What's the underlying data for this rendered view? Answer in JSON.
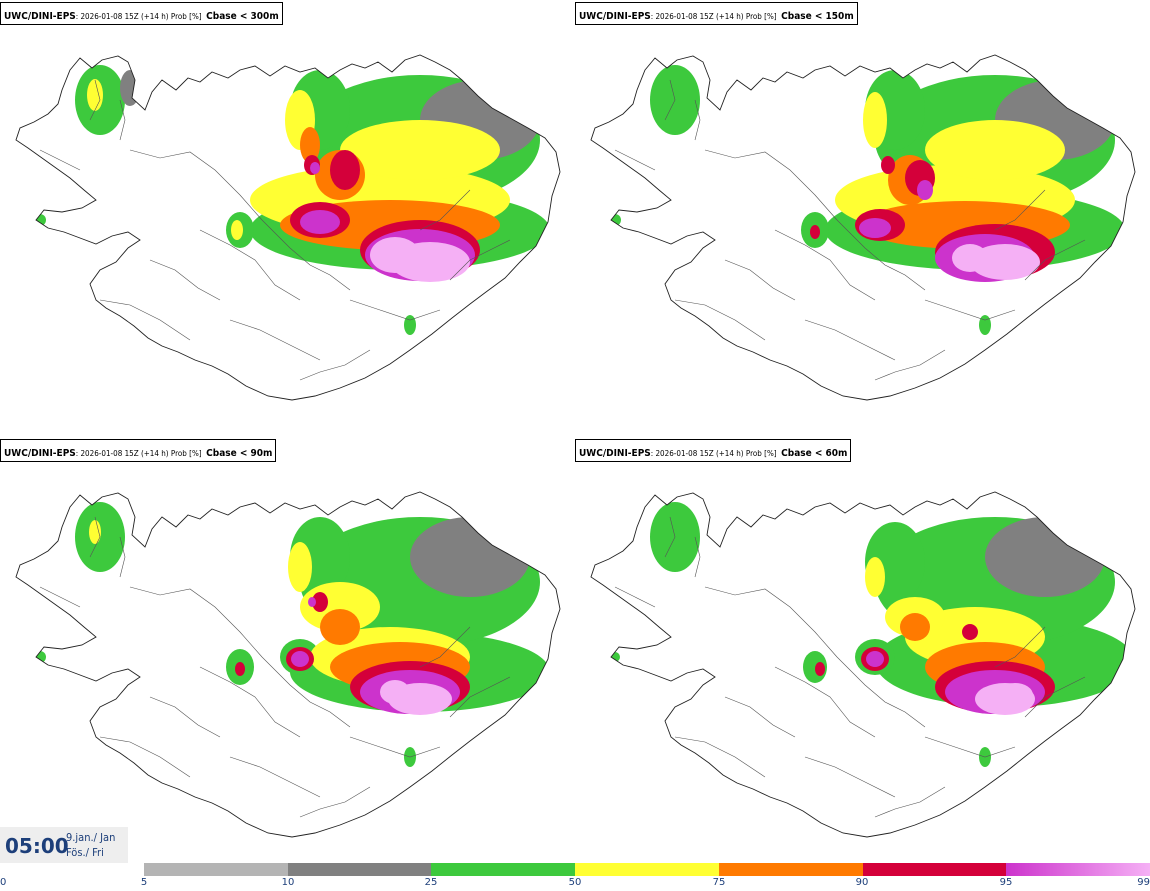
{
  "panels": [
    {
      "model": "UWC/DINI-EPS",
      "meta": ": 2026-01-08 15Z (+14 h) Prob [%]",
      "var": "Cbase < 300m"
    },
    {
      "model": "UWC/DINI-EPS",
      "meta": ": 2026-01-08 15Z (+14 h) Prob [%]",
      "var": "Cbase < 150m"
    },
    {
      "model": "UWC/DINI-EPS",
      "meta": ": 2026-01-08 15Z (+14 h) Prob [%]",
      "var": "Cbase < 90m"
    },
    {
      "model": "UWC/DINI-EPS",
      "meta": ": 2026-01-08 15Z (+14 h) Prob [%]",
      "var": "Cbase < 60m"
    }
  ],
  "valid_time": {
    "clock": "05:00",
    "date_line1": "9.jan./ Jan",
    "date_line2": "Fös./ Fri"
  },
  "legend": {
    "ticks": [
      "0",
      "5",
      "10",
      "25",
      "50",
      "75",
      "90",
      "95",
      "99"
    ],
    "segments": [
      {
        "from": 5,
        "to": 10,
        "color": "#b4b4b4"
      },
      {
        "from": 10,
        "to": 25,
        "color": "#808080"
      },
      {
        "from": 25,
        "to": 50,
        "color": "#3dc93d"
      },
      {
        "from": 50,
        "to": 75,
        "color": "#ffff33"
      },
      {
        "from": 75,
        "to": 90,
        "color": "#ff7a00"
      },
      {
        "from": 90,
        "to": 95,
        "color": "#d4003a"
      },
      {
        "from": 95,
        "to": 99,
        "color": "#cc33cc"
      },
      {
        "from": 99,
        "to": 100,
        "color": "#f5b0f5"
      }
    ]
  },
  "colors": {
    "low": "#b4b4b4",
    "mid": "#808080",
    "green": "#3dc93d",
    "yellow": "#ffff33",
    "orange": "#ff7a00",
    "red": "#d4003a",
    "magenta": "#cc33cc",
    "pink": "#f5b0f5"
  }
}
